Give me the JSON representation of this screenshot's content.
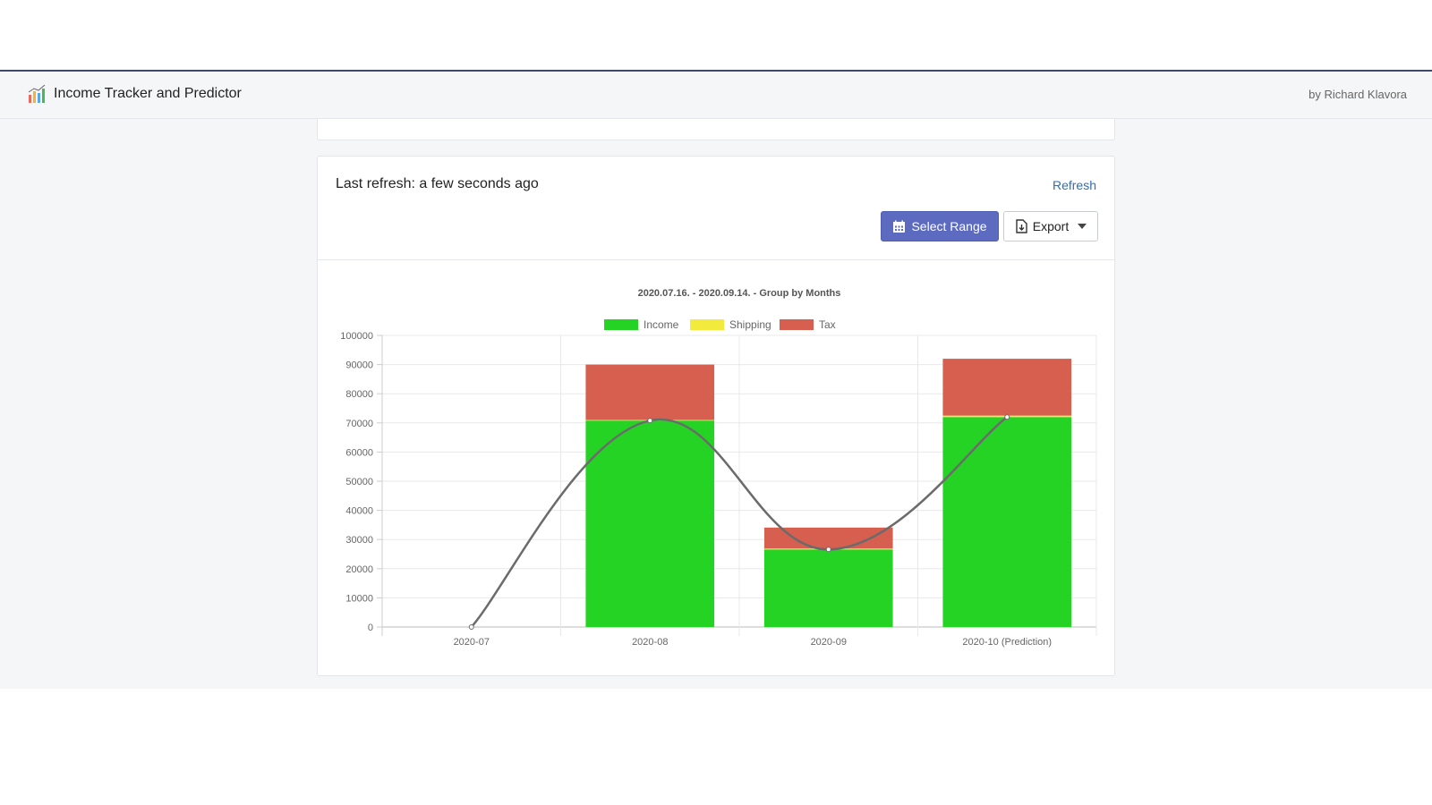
{
  "navbar": {
    "title": "Income Tracker and Predictor",
    "author": "by Richard Klavora"
  },
  "card": {
    "last_refresh": "Last refresh: a few seconds ago",
    "refresh_label": "Refresh",
    "select_range_label": "Select Range",
    "export_label": "Export"
  },
  "colors": {
    "income": "#25d325",
    "shipping": "#f2ea3c",
    "tax": "#d65f4f",
    "trend": "#6b6b6b",
    "primary_button": "#5c6bc0",
    "link": "#2f6fb3"
  },
  "chart_data": {
    "type": "bar",
    "stacked": true,
    "title": "2020.07.16. - 2020.09.14. - Group by Months",
    "categories": [
      "2020-07",
      "2020-08",
      "2020-09",
      "2020-10 (Prediction)"
    ],
    "series": [
      {
        "name": "Income",
        "color": "#25d325",
        "values": [
          0,
          70800,
          26600,
          72000
        ]
      },
      {
        "name": "Shipping",
        "color": "#f2ea3c",
        "values": [
          0,
          200,
          300,
          500
        ]
      },
      {
        "name": "Tax",
        "color": "#d65f4f",
        "values": [
          0,
          19000,
          7200,
          19500
        ]
      }
    ],
    "trend_line": {
      "values": [
        0,
        70800,
        26600,
        72000
      ],
      "color": "#6b6b6b",
      "smooth": true
    },
    "ylim": [
      0,
      100000
    ],
    "yticks": [
      0,
      10000,
      20000,
      30000,
      40000,
      50000,
      60000,
      70000,
      80000,
      90000,
      100000
    ],
    "grid": true,
    "legend_position": "top"
  }
}
